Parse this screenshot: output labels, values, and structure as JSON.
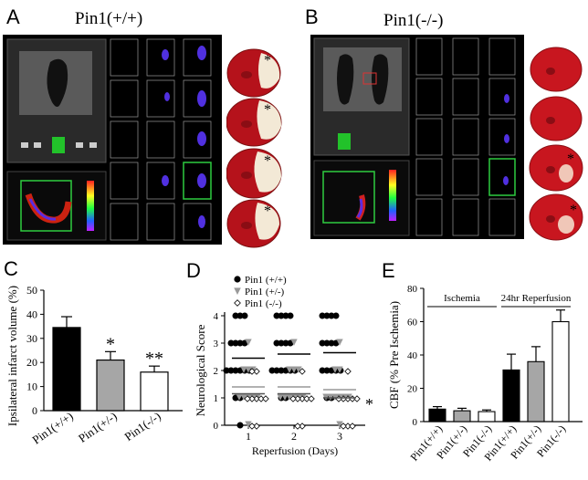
{
  "panels": {
    "A": {
      "label": "A",
      "title": "Pin1(+/+)",
      "stars": [
        "*",
        "*",
        "*",
        "*"
      ]
    },
    "B": {
      "label": "B",
      "title": "Pin1(-/-)",
      "stars": [
        "*",
        "*"
      ]
    },
    "C": {
      "label": "C"
    },
    "D": {
      "label": "D"
    },
    "E": {
      "label": "E"
    }
  },
  "chart_data": [
    {
      "type": "bar",
      "panel": "C",
      "ylabel": "Ipsilateral infarct volume (%)",
      "categories": [
        "Pin1(+/+)",
        "Pin1(+/-)",
        "Pin1(-/-)"
      ],
      "values": [
        34.5,
        21,
        16
      ],
      "errors": [
        4.5,
        3.5,
        2.5
      ],
      "bar_colors": [
        "#000000",
        "#a6a6a6",
        "#ffffff"
      ],
      "annotations": [
        "",
        "*",
        "**"
      ],
      "ylim": [
        0,
        50
      ],
      "yticks": [
        0,
        10,
        20,
        30,
        40,
        50
      ]
    },
    {
      "type": "scatter",
      "panel": "D",
      "ylabel": "Neurological Score",
      "xlabel": "Reperfusion (Days)",
      "xticks": [
        1,
        2,
        3
      ],
      "yticks": [
        0,
        1,
        2,
        3,
        4
      ],
      "ylim": [
        0,
        4
      ],
      "legend": [
        "Pin1 (+/+)",
        "Pin1 (+/-)",
        "Pin1 (-/-)"
      ],
      "series": [
        {
          "name": "Pin1 (+/+)",
          "marker": "circle",
          "color": "#000000",
          "means": [
            2.45,
            2.6,
            2.65
          ],
          "points": [
            [
              1,
              4
            ],
            [
              1,
              4
            ],
            [
              1,
              4
            ],
            [
              1,
              3
            ],
            [
              1,
              3
            ],
            [
              1,
              3
            ],
            [
              1,
              3
            ],
            [
              1,
              2
            ],
            [
              1,
              2
            ],
            [
              1,
              2
            ],
            [
              1,
              2
            ],
            [
              1,
              2
            ],
            [
              1,
              2
            ],
            [
              1,
              1
            ],
            [
              1,
              1
            ],
            [
              1,
              0
            ],
            [
              2,
              4
            ],
            [
              2,
              4
            ],
            [
              2,
              4
            ],
            [
              2,
              4
            ],
            [
              2,
              3
            ],
            [
              2,
              3
            ],
            [
              2,
              3
            ],
            [
              2,
              3
            ],
            [
              2,
              2
            ],
            [
              2,
              2
            ],
            [
              2,
              2
            ],
            [
              2,
              2
            ],
            [
              2,
              2
            ],
            [
              2,
              2
            ],
            [
              2,
              1
            ],
            [
              2,
              1
            ],
            [
              3,
              4
            ],
            [
              3,
              4
            ],
            [
              3,
              4
            ],
            [
              3,
              4
            ],
            [
              3,
              3
            ],
            [
              3,
              3
            ],
            [
              3,
              3
            ],
            [
              3,
              3
            ],
            [
              3,
              2
            ],
            [
              3,
              2
            ],
            [
              3,
              2
            ],
            [
              3,
              2
            ],
            [
              3,
              2
            ],
            [
              3,
              1
            ],
            [
              3,
              1
            ]
          ]
        },
        {
          "name": "Pin1 (+/-)",
          "marker": "triangle",
          "color": "#999999",
          "means": [
            1.4,
            1.4,
            1.3
          ],
          "points": [
            [
              1,
              3
            ],
            [
              1,
              2
            ],
            [
              1,
              2
            ],
            [
              1,
              2
            ],
            [
              1,
              1
            ],
            [
              1,
              1
            ],
            [
              1,
              1
            ],
            [
              1,
              1
            ],
            [
              1,
              1
            ],
            [
              1,
              0
            ],
            [
              2,
              3
            ],
            [
              2,
              2
            ],
            [
              2,
              2
            ],
            [
              2,
              2
            ],
            [
              2,
              1
            ],
            [
              2,
              1
            ],
            [
              2,
              1
            ],
            [
              2,
              1
            ],
            [
              2,
              1
            ],
            [
              2,
              1
            ],
            [
              3,
              3
            ],
            [
              3,
              2
            ],
            [
              3,
              2
            ],
            [
              3,
              1
            ],
            [
              3,
              1
            ],
            [
              3,
              1
            ],
            [
              3,
              1
            ],
            [
              3,
              1
            ],
            [
              3,
              1
            ],
            [
              3,
              0
            ]
          ]
        },
        {
          "name": "Pin1 (-/-)",
          "marker": "diamond",
          "color": "#ffffff",
          "means": [
            1.15,
            1.15,
            1.0
          ],
          "points": [
            [
              1,
              2
            ],
            [
              1,
              2
            ],
            [
              1,
              1
            ],
            [
              1,
              1
            ],
            [
              1,
              1
            ],
            [
              1,
              1
            ],
            [
              1,
              1
            ],
            [
              1,
              0
            ],
            [
              1,
              0
            ],
            [
              2,
              2
            ],
            [
              2,
              1
            ],
            [
              2,
              1
            ],
            [
              2,
              1
            ],
            [
              2,
              1
            ],
            [
              2,
              1
            ],
            [
              2,
              0
            ],
            [
              2,
              0
            ],
            [
              3,
              2
            ],
            [
              3,
              1
            ],
            [
              3,
              1
            ],
            [
              3,
              1
            ],
            [
              3,
              1
            ],
            [
              3,
              1
            ],
            [
              3,
              0
            ],
            [
              3,
              0
            ],
            [
              3,
              0
            ]
          ]
        }
      ],
      "annotation": "*"
    },
    {
      "type": "bar",
      "panel": "E",
      "ylabel": "CBF (% Pre Ischemia)",
      "categories": [
        "Pin1(+/+)",
        "Pin1(+/-)",
        "Pin1(-/-)",
        "Pin1(+/+)",
        "Pin1(+/-)",
        "Pin1(-/-)"
      ],
      "values": [
        7.5,
        6.5,
        6,
        31,
        36,
        60
      ],
      "errors": [
        1.5,
        1.5,
        1,
        9.5,
        9,
        7
      ],
      "bar_colors": [
        "#000000",
        "#a6a6a6",
        "#ffffff",
        "#000000",
        "#a6a6a6",
        "#ffffff"
      ],
      "groups": [
        {
          "label": "Ischemia",
          "start": 0,
          "end": 2
        },
        {
          "label": "24hr Reperfusion",
          "start": 3,
          "end": 5
        }
      ],
      "ylim": [
        0,
        80
      ],
      "yticks": [
        0,
        20,
        40,
        60,
        80
      ]
    }
  ]
}
